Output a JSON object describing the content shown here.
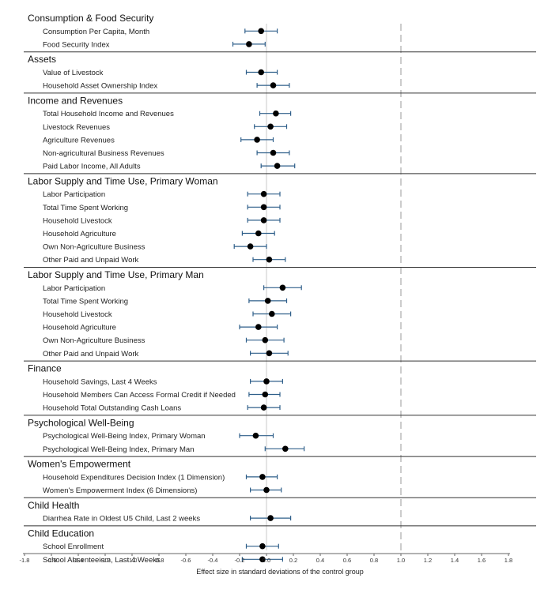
{
  "chart_data": {
    "type": "scatter",
    "xlabel": "Effect size in standard deviations of the control group",
    "xlim": [
      -1.8,
      1.8
    ],
    "xticks": [
      "-1.8",
      "-1.6",
      "-1.4",
      "-1.2",
      "-1.0",
      "-0.8",
      "-0.6",
      "-0.4",
      "-0.2",
      "0.0",
      "0.2",
      "0.4",
      "0.6",
      "0.8",
      "1.0",
      "1.2",
      "1.4",
      "1.6",
      "1.8"
    ],
    "reference_lines": [
      0,
      1.0
    ],
    "groups": [
      {
        "name": "Consumption & Food Security",
        "items": [
          {
            "label": "Consumption Per Capita, Month",
            "est": -0.04,
            "lo": -0.16,
            "hi": 0.08
          },
          {
            "label": "Food Security Index",
            "est": -0.13,
            "lo": -0.25,
            "hi": -0.01
          }
        ]
      },
      {
        "name": "Assets",
        "items": [
          {
            "label": "Value of Livestock",
            "est": -0.04,
            "lo": -0.15,
            "hi": 0.08
          },
          {
            "label": "Household Asset Ownership Index",
            "est": 0.05,
            "lo": -0.07,
            "hi": 0.17
          }
        ]
      },
      {
        "name": "Income and Revenues",
        "items": [
          {
            "label": "Total Household Income and Revenues",
            "est": 0.07,
            "lo": -0.05,
            "hi": 0.18
          },
          {
            "label": "Livestock Revenues",
            "est": 0.03,
            "lo": -0.09,
            "hi": 0.15
          },
          {
            "label": "Agriculture Revenues",
            "est": -0.07,
            "lo": -0.19,
            "hi": 0.05
          },
          {
            "label": "Non-agricultural Business Revenues",
            "est": 0.05,
            "lo": -0.07,
            "hi": 0.17
          },
          {
            "label": "Paid Labor Income, All Adults",
            "est": 0.08,
            "lo": -0.04,
            "hi": 0.21
          }
        ]
      },
      {
        "name": "Labor Supply and Time Use, Primary Woman",
        "items": [
          {
            "label": "Labor Participation",
            "est": -0.02,
            "lo": -0.14,
            "hi": 0.1
          },
          {
            "label": "Total Time Spent Working",
            "est": -0.02,
            "lo": -0.14,
            "hi": 0.1
          },
          {
            "label": "Household Livestock",
            "est": -0.02,
            "lo": -0.14,
            "hi": 0.1
          },
          {
            "label": "Household Agriculture",
            "est": -0.06,
            "lo": -0.18,
            "hi": 0.06
          },
          {
            "label": "Own Non-Agriculture Business",
            "est": -0.12,
            "lo": -0.24,
            "hi": 0.0
          },
          {
            "label": "Other Paid and Unpaid Work",
            "est": 0.02,
            "lo": -0.1,
            "hi": 0.14
          }
        ]
      },
      {
        "name": "Labor Supply and Time Use, Primary Man",
        "items": [
          {
            "label": "Labor Participation",
            "est": 0.12,
            "lo": -0.02,
            "hi": 0.26
          },
          {
            "label": "Total Time Spent Working",
            "est": 0.01,
            "lo": -0.13,
            "hi": 0.15
          },
          {
            "label": "Household Livestock",
            "est": 0.04,
            "lo": -0.1,
            "hi": 0.18
          },
          {
            "label": "Household Agriculture",
            "est": -0.06,
            "lo": -0.2,
            "hi": 0.08
          },
          {
            "label": "Own Non-Agriculture Business",
            "est": -0.01,
            "lo": -0.15,
            "hi": 0.13
          },
          {
            "label": "Other Paid and Unpaid Work",
            "est": 0.02,
            "lo": -0.12,
            "hi": 0.16
          }
        ]
      },
      {
        "name": "Finance",
        "items": [
          {
            "label": "Household Savings, Last 4 Weeks",
            "est": 0.0,
            "lo": -0.12,
            "hi": 0.12
          },
          {
            "label": "Household Members Can Access Formal Credit if Needed",
            "est": -0.01,
            "lo": -0.13,
            "hi": 0.1
          },
          {
            "label": "Household Total Outstanding Cash Loans",
            "est": -0.02,
            "lo": -0.14,
            "hi": 0.1
          }
        ]
      },
      {
        "name": "Psychological Well-Being",
        "items": [
          {
            "label": "Psychological Well-Being Index, Primary Woman",
            "est": -0.08,
            "lo": -0.2,
            "hi": 0.05
          },
          {
            "label": "Psychological Well-Being Index, Primary Man",
            "est": 0.14,
            "lo": -0.01,
            "hi": 0.28
          }
        ]
      },
      {
        "name": "Women's Empowerment",
        "items": [
          {
            "label": "Household Expenditures Decision Index (1 Dimension)",
            "est": -0.03,
            "lo": -0.15,
            "hi": 0.08
          },
          {
            "label": "Women's Empowerment Index (6 Dimensions)",
            "est": 0.0,
            "lo": -0.12,
            "hi": 0.11
          }
        ]
      },
      {
        "name": "Child Health",
        "items": [
          {
            "label": "Diarrhea Rate in Oldest U5 Child, Last 2 weeks",
            "est": 0.03,
            "lo": -0.12,
            "hi": 0.18
          }
        ]
      },
      {
        "name": "Child Education",
        "items": [
          {
            "label": "School Enrollment",
            "est": -0.03,
            "lo": -0.15,
            "hi": 0.09
          },
          {
            "label": "School Absenteeism, Last 4 Weeks",
            "est": -0.03,
            "lo": -0.18,
            "hi": 0.12
          }
        ]
      }
    ]
  },
  "colors": {
    "marker": "#000000",
    "ci": "#2f5f8a",
    "zero_line": "#c8c8c8",
    "ref_line": "#9a9a9a",
    "separator": "#333333",
    "text": "#222222"
  }
}
